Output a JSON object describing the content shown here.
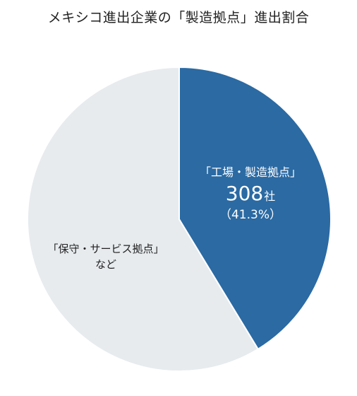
{
  "chart_data": {
    "type": "pie",
    "title": "メキシコ進出企業の「製造拠点」進出割合",
    "slices": [
      {
        "label": "「工場・製造拠点」",
        "value_text": "308",
        "unit": "社",
        "percent_text": "（41.3%）",
        "value": 308,
        "percent": 41.3,
        "color": "#2b6aa3"
      },
      {
        "label": "「保守・サービス拠点」",
        "sublabel": "など",
        "percent": 58.7,
        "color": "#e7ebee"
      }
    ]
  }
}
